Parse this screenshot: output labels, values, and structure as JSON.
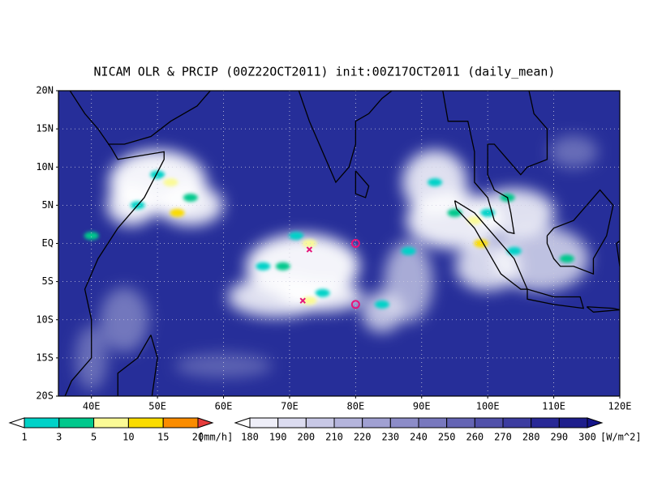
{
  "title": "NICAM OLR & PRCIP (00Z22OCT2011) init:00Z17OCT2011 (daily_mean)",
  "lat_labels": [
    "20N",
    "15N",
    "10N",
    "5N",
    "EQ",
    "5S",
    "10S",
    "15S",
    "20S"
  ],
  "lon_labels": [
    "40E",
    "50E",
    "60E",
    "70E",
    "80E",
    "90E",
    "100E",
    "110E",
    "120E"
  ],
  "precip_colorbar": {
    "labels": [
      "1",
      "3",
      "5",
      "10",
      "15",
      "20"
    ],
    "unit": "[mm/h]",
    "colors": [
      "#ffffff",
      "#00d2c8",
      "#00c88c",
      "#fafa96",
      "#fadc00",
      "#fa8c00",
      "#e63c3c"
    ]
  },
  "olr_colorbar": {
    "labels": [
      "180",
      "190",
      "200",
      "210",
      "220",
      "230",
      "240",
      "250",
      "260",
      "270",
      "280",
      "290",
      "300"
    ],
    "unit": "[W/m^2]",
    "colors": [
      "#ffffff",
      "#eeeef8",
      "#dcdcf0",
      "#c8c8e6",
      "#b4b4dc",
      "#a0a0d2",
      "#8c8cc8",
      "#7878be",
      "#6464b4",
      "#5050aa",
      "#3c3ca0",
      "#282896",
      "#1e1e8c",
      "#14148a"
    ]
  }
}
